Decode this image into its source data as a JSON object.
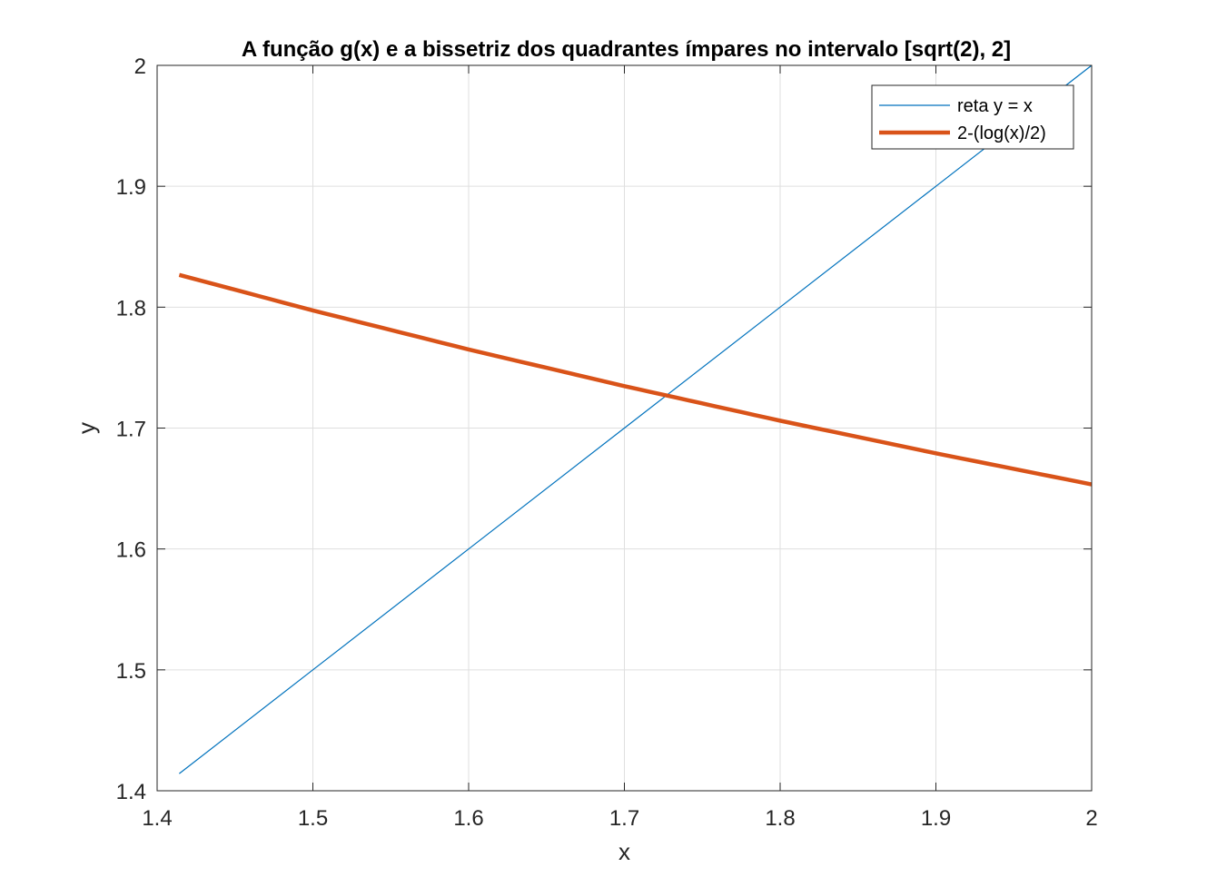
{
  "chart_data": {
    "type": "line",
    "title": "A função g(x) e a bissetriz dos quadrantes ímpares no intervalo [sqrt(2), 2]",
    "xlabel": "x",
    "ylabel": "y",
    "xlim": [
      1.4,
      2
    ],
    "ylim": [
      1.4,
      2
    ],
    "xticks": [
      1.4,
      1.5,
      1.6,
      1.7,
      1.8,
      1.9,
      2
    ],
    "xtick_labels": [
      "1.4",
      "1.5",
      "1.6",
      "1.7",
      "1.8",
      "1.9",
      "2"
    ],
    "yticks": [
      1.4,
      1.5,
      1.6,
      1.7,
      1.8,
      1.9,
      2
    ],
    "ytick_labels": [
      "1.4",
      "1.5",
      "1.6",
      "1.7",
      "1.8",
      "1.9",
      "2"
    ],
    "grid": true,
    "legend_position": "top-right",
    "series": [
      {
        "name": "reta y = x",
        "color": "#0072BD",
        "x": [
          1.4142,
          1.5,
          1.6,
          1.7,
          1.8,
          1.9,
          2
        ],
        "y": [
          1.4142,
          1.5,
          1.6,
          1.7,
          1.8,
          1.9,
          2
        ]
      },
      {
        "name": "2-(log(x)/2)",
        "color": "#D95319",
        "x": [
          1.4142,
          1.5,
          1.6,
          1.7,
          1.8,
          1.9,
          2
        ],
        "y": [
          1.8267,
          1.7973,
          1.765,
          1.7347,
          1.7061,
          1.6791,
          1.6534
        ]
      }
    ]
  }
}
